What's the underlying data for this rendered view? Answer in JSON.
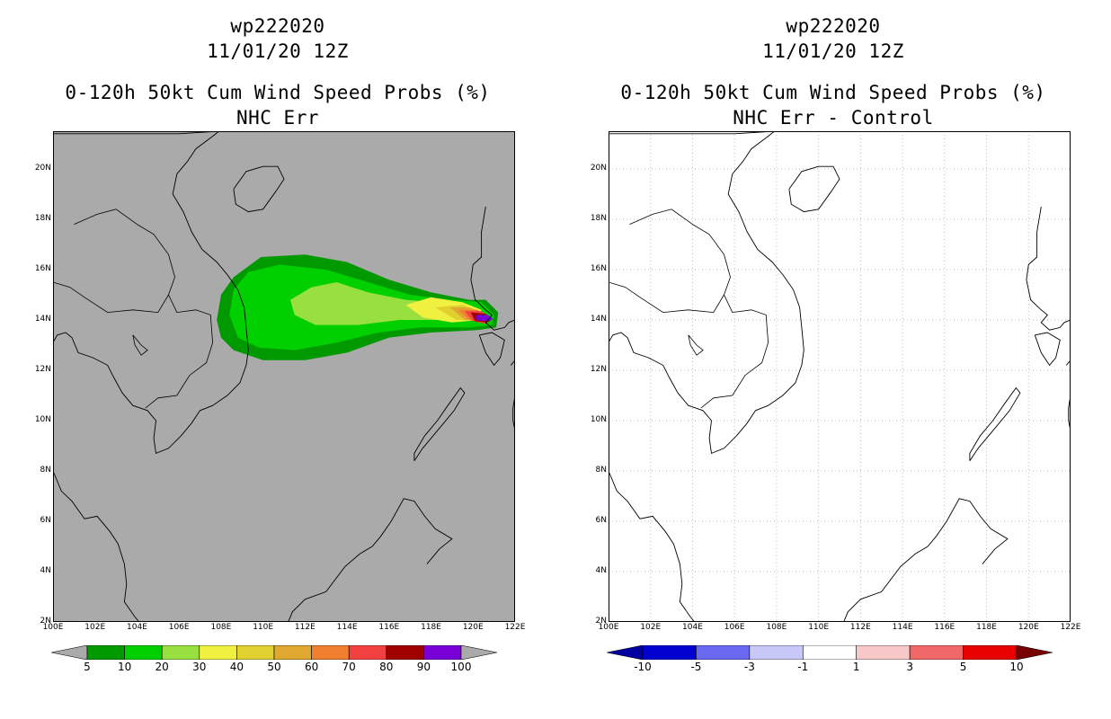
{
  "left": {
    "title_line1": "wp222020",
    "title_line2": "11/01/20 12Z",
    "title_line3": "0-120h 50kt Cum Wind Speed Probs (%)",
    "title_line4": "NHC Err",
    "background": "#aaaaaa",
    "colorbar": {
      "labels": [
        "5",
        "10",
        "20",
        "30",
        "40",
        "50",
        "60",
        "70",
        "80",
        "90",
        "100"
      ],
      "colors": [
        "#009a00",
        "#00d000",
        "#98e040",
        "#f0f040",
        "#e0d030",
        "#e0a830",
        "#f08030",
        "#f04040",
        "#a00000",
        "#7a00d8"
      ],
      "arrow_colors": [
        "#aaaaaa",
        "#aaaaaa"
      ]
    }
  },
  "right": {
    "title_line1": "wp222020",
    "title_line2": "11/01/20 12Z",
    "title_line3": "0-120h 50kt Cum Wind Speed Probs (%)",
    "title_line4": "NHC Err - Control",
    "background": "#ffffff",
    "colorbar": {
      "labels": [
        "-10",
        "-5",
        "-3",
        "-1",
        "1",
        "3",
        "5",
        "10"
      ],
      "colors": [
        "#0000d0",
        "#6868f0",
        "#c8c8f8",
        "#ffffff",
        "#f8c8c8",
        "#f06868",
        "#e80000"
      ],
      "arrow_colors": [
        "#0000a0",
        "#780000"
      ]
    }
  },
  "axes": {
    "lat_labels": [
      "20N",
      "18N",
      "16N",
      "14N",
      "12N",
      "10N",
      "8N",
      "6N",
      "4N",
      "2N"
    ],
    "lon_labels": [
      "100E",
      "102E",
      "104E",
      "106E",
      "108E",
      "110E",
      "112E",
      "114E",
      "116E",
      "118E",
      "120E",
      "122E"
    ],
    "lon_range": [
      100,
      122
    ],
    "lat_range": [
      2,
      21.5
    ]
  }
}
